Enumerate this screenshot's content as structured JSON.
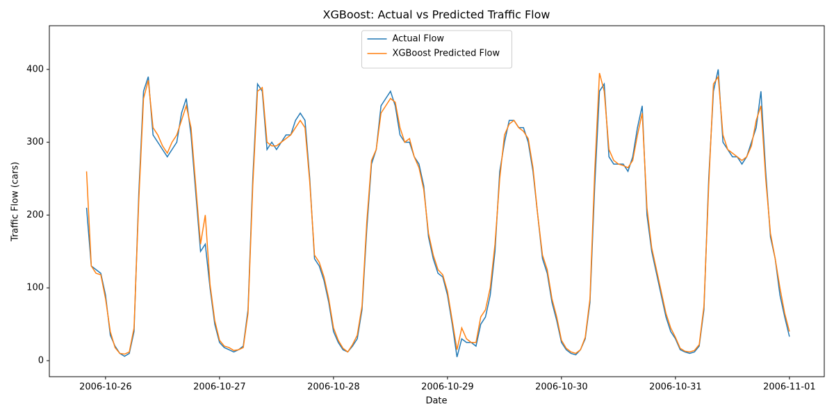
{
  "chart_data": {
    "type": "line",
    "title": "XGBoost: Actual vs Predicted Traffic Flow",
    "x_label": "Date",
    "y_label": "Traffic Flow (cars)",
    "x": [
      "2006-10-25 20:00",
      "2006-10-25 21:00",
      "2006-10-25 22:00",
      "2006-10-25 23:00",
      "2006-10-26 00:00",
      "2006-10-26 01:00",
      "2006-10-26 02:00",
      "2006-10-26 03:00",
      "2006-10-26 04:00",
      "2006-10-26 05:00",
      "2006-10-26 06:00",
      "2006-10-26 07:00",
      "2006-10-26 08:00",
      "2006-10-26 09:00",
      "2006-10-26 10:00",
      "2006-10-26 11:00",
      "2006-10-26 12:00",
      "2006-10-26 13:00",
      "2006-10-26 14:00",
      "2006-10-26 15:00",
      "2006-10-26 16:00",
      "2006-10-26 17:00",
      "2006-10-26 18:00",
      "2006-10-26 19:00",
      "2006-10-26 20:00",
      "2006-10-26 21:00",
      "2006-10-26 22:00",
      "2006-10-26 23:00",
      "2006-10-27 00:00",
      "2006-10-27 01:00",
      "2006-10-27 02:00",
      "2006-10-27 03:00",
      "2006-10-27 04:00",
      "2006-10-27 05:00",
      "2006-10-27 06:00",
      "2006-10-27 07:00",
      "2006-10-27 08:00",
      "2006-10-27 09:00",
      "2006-10-27 10:00",
      "2006-10-27 11:00",
      "2006-10-27 12:00",
      "2006-10-27 13:00",
      "2006-10-27 14:00",
      "2006-10-27 15:00",
      "2006-10-27 16:00",
      "2006-10-27 17:00",
      "2006-10-27 18:00",
      "2006-10-27 19:00",
      "2006-10-27 20:00",
      "2006-10-27 21:00",
      "2006-10-27 22:00",
      "2006-10-27 23:00",
      "2006-10-28 00:00",
      "2006-10-28 01:00",
      "2006-10-28 02:00",
      "2006-10-28 03:00",
      "2006-10-28 04:00",
      "2006-10-28 05:00",
      "2006-10-28 06:00",
      "2006-10-28 07:00",
      "2006-10-28 08:00",
      "2006-10-28 09:00",
      "2006-10-28 10:00",
      "2006-10-28 11:00",
      "2006-10-28 12:00",
      "2006-10-28 13:00",
      "2006-10-28 14:00",
      "2006-10-28 15:00",
      "2006-10-28 16:00",
      "2006-10-28 17:00",
      "2006-10-28 18:00",
      "2006-10-28 19:00",
      "2006-10-28 20:00",
      "2006-10-28 21:00",
      "2006-10-28 22:00",
      "2006-10-28 23:00",
      "2006-10-29 00:00",
      "2006-10-29 01:00",
      "2006-10-29 02:00",
      "2006-10-29 03:00",
      "2006-10-29 04:00",
      "2006-10-29 05:00",
      "2006-10-29 06:00",
      "2006-10-29 07:00",
      "2006-10-29 08:00",
      "2006-10-29 09:00",
      "2006-10-29 10:00",
      "2006-10-29 11:00",
      "2006-10-29 12:00",
      "2006-10-29 13:00",
      "2006-10-29 14:00",
      "2006-10-29 15:00",
      "2006-10-29 16:00",
      "2006-10-29 17:00",
      "2006-10-29 18:00",
      "2006-10-29 19:00",
      "2006-10-29 20:00",
      "2006-10-29 21:00",
      "2006-10-29 22:00",
      "2006-10-29 23:00",
      "2006-10-30 00:00",
      "2006-10-30 01:00",
      "2006-10-30 02:00",
      "2006-10-30 03:00",
      "2006-10-30 04:00",
      "2006-10-30 05:00",
      "2006-10-30 06:00",
      "2006-10-30 07:00",
      "2006-10-30 08:00",
      "2006-10-30 09:00",
      "2006-10-30 10:00",
      "2006-10-30 11:00",
      "2006-10-30 12:00",
      "2006-10-30 13:00",
      "2006-10-30 14:00",
      "2006-10-30 15:00",
      "2006-10-30 16:00",
      "2006-10-30 17:00",
      "2006-10-30 18:00",
      "2006-10-30 19:00",
      "2006-10-30 20:00",
      "2006-10-30 21:00",
      "2006-10-30 22:00",
      "2006-10-30 23:00",
      "2006-10-31 00:00",
      "2006-10-31 01:00",
      "2006-10-31 02:00",
      "2006-10-31 03:00",
      "2006-10-31 04:00",
      "2006-10-31 05:00",
      "2006-10-31 06:00",
      "2006-10-31 07:00",
      "2006-10-31 08:00",
      "2006-10-31 09:00",
      "2006-10-31 10:00",
      "2006-10-31 11:00",
      "2006-10-31 12:00",
      "2006-10-31 13:00",
      "2006-10-31 14:00",
      "2006-10-31 15:00",
      "2006-10-31 16:00",
      "2006-10-31 17:00",
      "2006-10-31 18:00",
      "2006-10-31 19:00",
      "2006-10-31 20:00",
      "2006-10-31 21:00",
      "2006-10-31 22:00",
      "2006-10-31 23:00",
      "2006-11-01 00:00"
    ],
    "series": [
      {
        "name": "Actual Flow",
        "color": "#1f77b4",
        "values": [
          210,
          130,
          125,
          120,
          90,
          35,
          20,
          10,
          6,
          10,
          40,
          230,
          370,
          390,
          310,
          300,
          290,
          280,
          290,
          300,
          340,
          360,
          310,
          230,
          150,
          160,
          100,
          50,
          25,
          18,
          15,
          12,
          15,
          20,
          70,
          250,
          380,
          370,
          290,
          300,
          290,
          300,
          310,
          310,
          330,
          340,
          330,
          250,
          140,
          130,
          110,
          80,
          40,
          25,
          15,
          12,
          20,
          30,
          70,
          180,
          270,
          290,
          350,
          360,
          370,
          350,
          310,
          300,
          300,
          280,
          270,
          240,
          170,
          140,
          120,
          115,
          90,
          50,
          5,
          30,
          25,
          25,
          20,
          50,
          60,
          90,
          150,
          260,
          300,
          330,
          330,
          320,
          320,
          300,
          260,
          200,
          140,
          120,
          80,
          55,
          25,
          15,
          10,
          8,
          15,
          30,
          80,
          240,
          370,
          380,
          280,
          270,
          270,
          270,
          260,
          280,
          320,
          350,
          200,
          150,
          120,
          90,
          60,
          40,
          30,
          15,
          12,
          10,
          12,
          20,
          70,
          250,
          370,
          400,
          300,
          290,
          280,
          280,
          270,
          280,
          300,
          320,
          370,
          260,
          170,
          140,
          90,
          60,
          33
        ]
      },
      {
        "name": "XGBoost Predicted Flow",
        "color": "#ff7f0e",
        "values": [
          260,
          130,
          120,
          118,
          85,
          40,
          18,
          10,
          9,
          12,
          45,
          220,
          360,
          385,
          320,
          310,
          295,
          285,
          300,
          310,
          330,
          350,
          320,
          240,
          160,
          200,
          105,
          55,
          28,
          20,
          18,
          14,
          15,
          18,
          65,
          240,
          370,
          375,
          300,
          295,
          295,
          300,
          305,
          310,
          320,
          330,
          320,
          245,
          145,
          135,
          115,
          85,
          45,
          28,
          17,
          12,
          22,
          35,
          75,
          190,
          275,
          290,
          340,
          350,
          360,
          355,
          320,
          300,
          305,
          280,
          265,
          235,
          175,
          145,
          125,
          118,
          95,
          55,
          15,
          45,
          30,
          25,
          25,
          60,
          70,
          100,
          160,
          250,
          310,
          325,
          330,
          320,
          315,
          305,
          265,
          200,
          145,
          125,
          85,
          60,
          28,
          17,
          12,
          10,
          15,
          32,
          85,
          260,
          395,
          370,
          290,
          275,
          270,
          268,
          265,
          275,
          310,
          340,
          210,
          155,
          125,
          95,
          65,
          45,
          32,
          17,
          13,
          12,
          14,
          22,
          75,
          240,
          380,
          390,
          310,
          290,
          285,
          280,
          275,
          280,
          295,
          330,
          350,
          250,
          175,
          140,
          100,
          65,
          40
        ]
      }
    ],
    "xlim": [
      "2006-10-25 12:10",
      "2006-11-01 07:20"
    ],
    "xticks": [
      "2006-10-26",
      "2006-10-27",
      "2006-10-28",
      "2006-10-29",
      "2006-10-30",
      "2006-10-31",
      "2006-11-01"
    ],
    "ylim": [
      -22,
      460
    ],
    "yticks": [
      0,
      100,
      200,
      300,
      400
    ],
    "legend": "upper center",
    "grid": false
  }
}
